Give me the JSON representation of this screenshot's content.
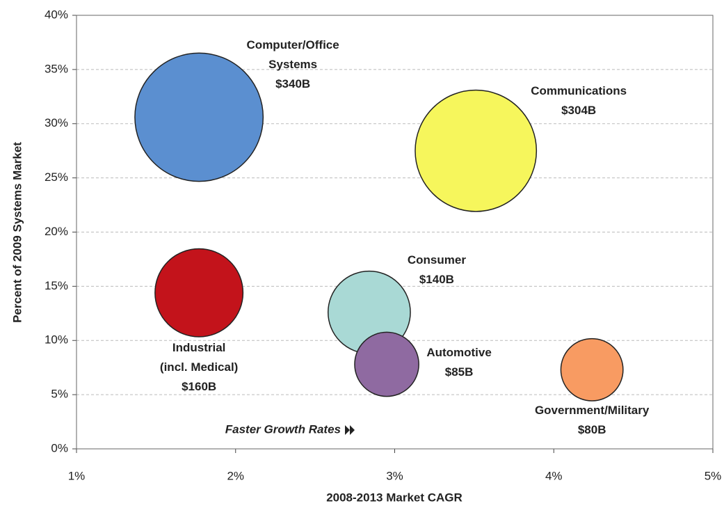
{
  "chart_data": {
    "type": "bubble",
    "x_label": "2008-2013 Market CAGR",
    "y_label": "Percent of 2009 Systems Market",
    "annotation": "Faster Growth Rates",
    "labels": [
      [
        "Computer/Office",
        "Systems"
      ],
      [
        "Communications"
      ],
      [
        "Industrial",
        "(incl. Medical)"
      ],
      [
        "Consumer"
      ],
      [
        "Automotive"
      ],
      [
        "Government/Military"
      ]
    ],
    "x": [
      1.77,
      3.51,
      1.77,
      2.84,
      2.95,
      4.24
    ],
    "values": [
      30.6,
      27.5,
      14.4,
      12.6,
      7.8,
      7.3
    ],
    "sizes": [
      340,
      304,
      160,
      140,
      85,
      80
    ],
    "value_labels": [
      "$340B",
      "$304B",
      "$160B",
      "$140B",
      "$85B",
      "$80B"
    ],
    "colors": [
      "#5b8fd0",
      "#f6f65c",
      "#c3131b",
      "#a9d9d5",
      "#8f6aa1",
      "#f89b62"
    ],
    "xlim": [
      1,
      5
    ],
    "xticks": [
      {
        "value": 1,
        "label": "1%"
      },
      {
        "value": 2,
        "label": "2%"
      },
      {
        "value": 3,
        "label": "3%"
      },
      {
        "value": 4,
        "label": "4%"
      },
      {
        "value": 5,
        "label": "5%"
      }
    ],
    "ylim": [
      0,
      40
    ],
    "yticks": [
      {
        "value": 0,
        "label": "0%"
      },
      {
        "value": 5,
        "label": "5%"
      },
      {
        "value": 10,
        "label": "10%"
      },
      {
        "value": 15,
        "label": "15%"
      },
      {
        "value": 20,
        "label": "20%"
      },
      {
        "value": 25,
        "label": "25%"
      },
      {
        "value": 30,
        "label": "30%"
      },
      {
        "value": 35,
        "label": "35%"
      },
      {
        "value": 40,
        "label": "40%"
      }
    ],
    "grid": true
  }
}
